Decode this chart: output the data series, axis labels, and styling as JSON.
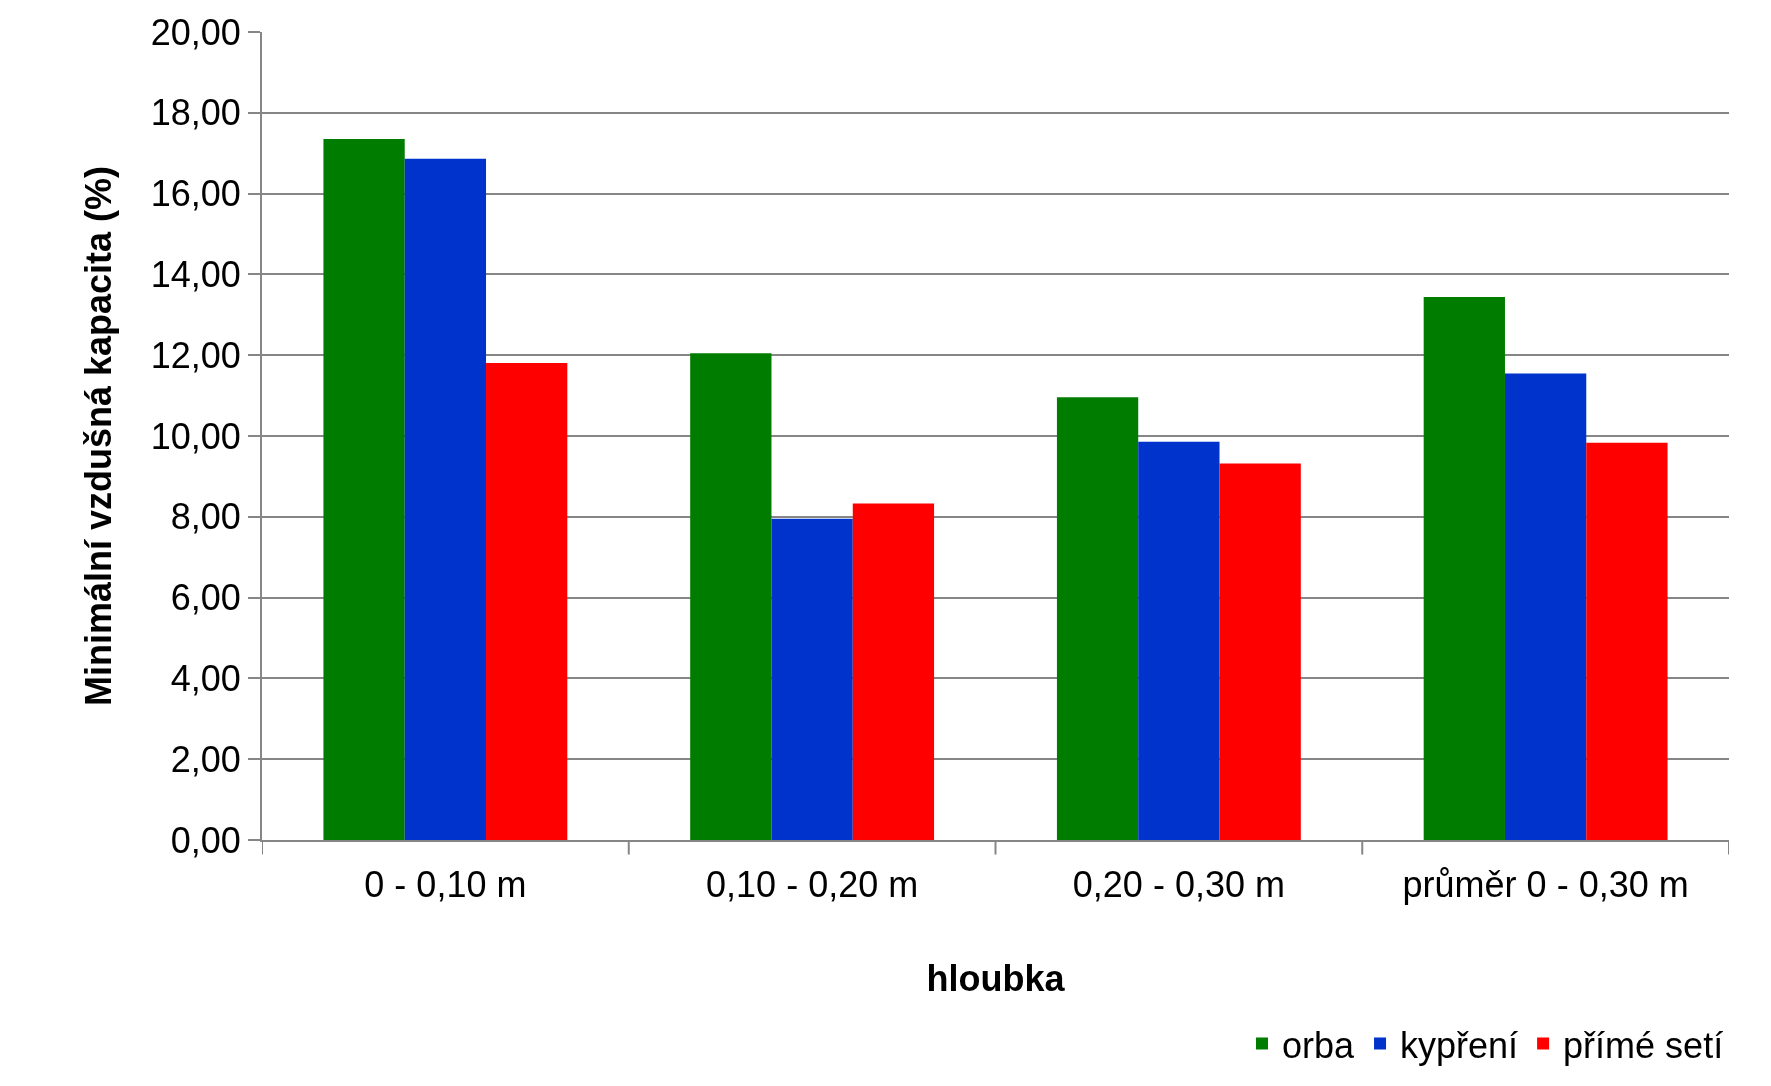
{
  "chart_data": {
    "type": "bar",
    "xlabel": "hloubka",
    "ylabel": "Minimální vzdušná kapacita (%)",
    "categories": [
      "0 - 0,10 m",
      "0,10 - 0,20 m",
      "0,20 - 0,30 m",
      "průměr 0 - 0,30 m"
    ],
    "series": [
      {
        "name": "orba",
        "color": "#007d00",
        "values": [
          17.35,
          12.05,
          10.96,
          13.44
        ]
      },
      {
        "name": "kypření",
        "color": "#0033cc",
        "values": [
          16.86,
          7.95,
          9.86,
          11.55
        ]
      },
      {
        "name": "přímé setí",
        "color": "#ff0000",
        "values": [
          11.81,
          8.33,
          9.32,
          9.83
        ]
      }
    ],
    "ylim": [
      0,
      20
    ],
    "yticks": [
      {
        "value": 0,
        "label": "0,00"
      },
      {
        "value": 2,
        "label": "2,00"
      },
      {
        "value": 4,
        "label": "4,00"
      },
      {
        "value": 6,
        "label": "6,00"
      },
      {
        "value": 8,
        "label": "8,00"
      },
      {
        "value": 10,
        "label": "10,00"
      },
      {
        "value": 12,
        "label": "12,00"
      },
      {
        "value": 14,
        "label": "14,00"
      },
      {
        "value": 16,
        "label": "16,00"
      },
      {
        "value": 18,
        "label": "18,00"
      },
      {
        "value": 20,
        "label": "20,00"
      }
    ],
    "grid": "y",
    "legend": "bottom right"
  }
}
